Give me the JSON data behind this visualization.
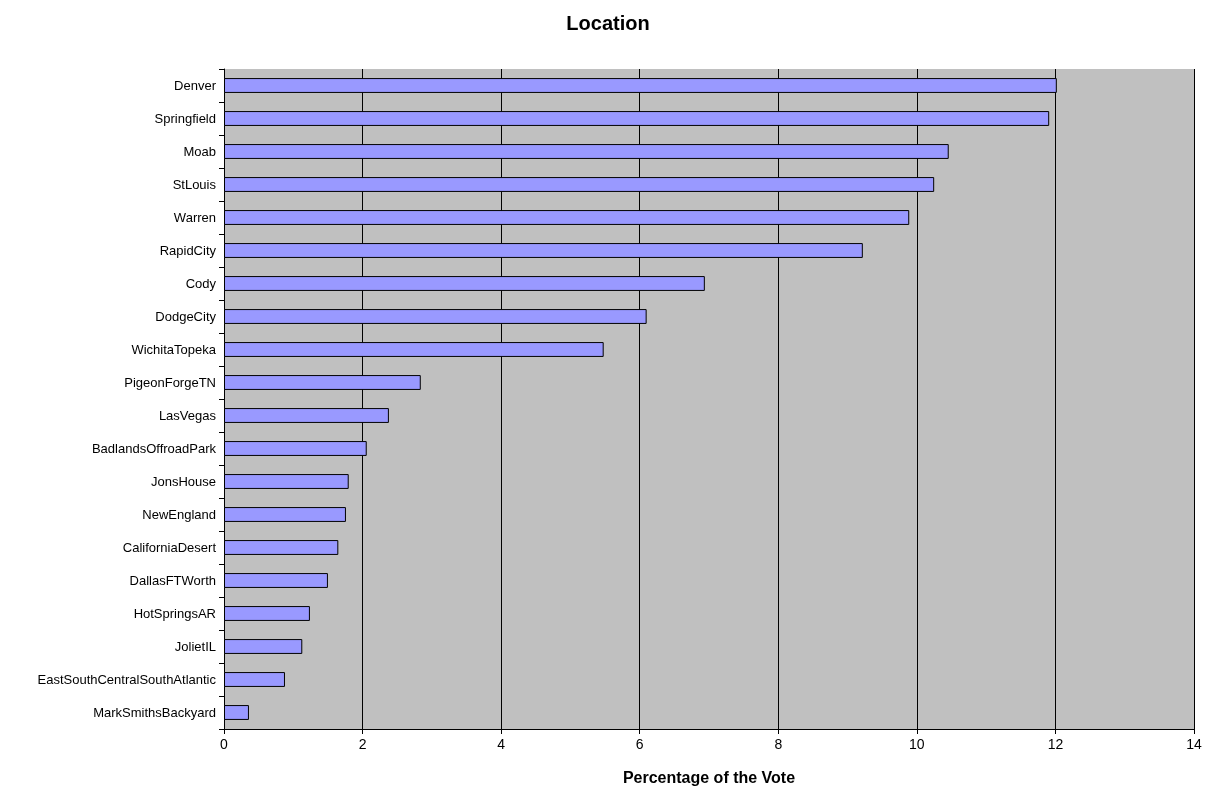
{
  "chart_data": {
    "type": "bar",
    "orientation": "horizontal",
    "title": "Location",
    "xlabel": "Percentage of the Vote",
    "categories": [
      "Denver",
      "Springfield",
      "Moab",
      "StLouis",
      "Warren",
      "RapidCity",
      "Cody",
      "DodgeCity",
      "WichitaTopeka",
      "PigeonForgeTN",
      "LasVegas",
      "BadlandsOffroadPark",
      "JonsHouse",
      "NewEngland",
      "CaliforniaDesert",
      "DallasFTWorth",
      "HotSpringsAR",
      "JolietIL",
      "EastSouthCentralSouthAtlantic",
      "MarkSmithsBackyard"
    ],
    "values": [
      12.02,
      11.91,
      10.46,
      10.25,
      9.89,
      9.22,
      6.94,
      6.1,
      5.48,
      2.84,
      2.38,
      2.06,
      1.8,
      1.76,
      1.65,
      1.5,
      1.24,
      1.13,
      0.88,
      0.36
    ],
    "color": "#9999ff",
    "xlim": [
      0,
      14
    ],
    "xticks": [
      0,
      2,
      4,
      6,
      8,
      10,
      12,
      14
    ],
    "grid": "x"
  }
}
